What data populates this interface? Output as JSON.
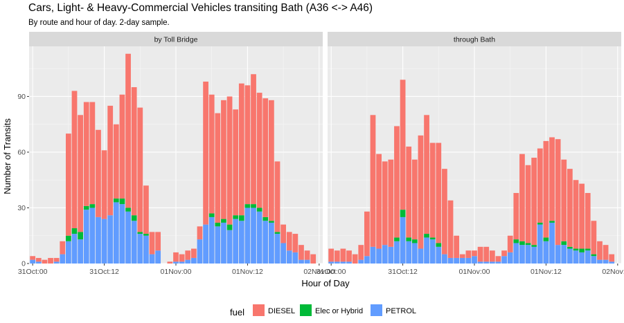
{
  "chart_data": {
    "type": "bar",
    "stacked": true,
    "title": "Cars, Light- & Heavy-Commercial Vehicles transiting Bath (A36 <-> A46)",
    "subtitle": "By route and hour of day. 2-day sample.",
    "xlabel": "Hour of Day",
    "ylabel": "Number of Transits",
    "x_ticks": [
      "31Oct:00",
      "31Oct:12",
      "01Nov:00",
      "01Nov:12",
      "02Nov:00"
    ],
    "y_ticks": [
      "0",
      "30",
      "60",
      "90"
    ],
    "ylim": [
      0,
      117
    ],
    "hours": 48,
    "legend_title": "fuel",
    "legend_position": "bottom",
    "colors": {
      "DIESEL": "#F8766D",
      "Elec or Hybrid": "#00BA38",
      "PETROL": "#619CFF"
    },
    "series_names": [
      "PETROL",
      "Elec or Hybrid",
      "DIESEL"
    ],
    "facets": [
      {
        "label": "by Toll Bridge",
        "series": [
          {
            "name": "PETROL",
            "values": [
              2,
              1,
              0,
              0,
              1,
              5,
              12,
              16,
              13,
              29,
              30,
              25,
              24,
              26,
              33,
              32,
              28,
              23,
              16,
              15,
              5,
              7,
              0,
              0,
              1,
              1,
              2,
              3,
              13,
              21,
              25,
              20,
              22,
              18,
              24,
              23,
              30,
              30,
              28,
              23,
              22,
              16,
              11,
              7,
              6,
              2,
              2,
              0
            ]
          },
          {
            "name": "Elec or Hybrid",
            "values": [
              0,
              0,
              0,
              0,
              0,
              0,
              3,
              3,
              4,
              2,
              2,
              0,
              0,
              0,
              2,
              3,
              2,
              3,
              1,
              1,
              0,
              0,
              0,
              0,
              0,
              0,
              0,
              0,
              0,
              0,
              2,
              2,
              2,
              3,
              2,
              3,
              2,
              2,
              2,
              2,
              1,
              1,
              0,
              0,
              0,
              0,
              0,
              0
            ]
          },
          {
            "name": "DIESEL",
            "values": [
              2,
              2,
              2,
              3,
              2,
              7,
              55,
              74,
              63,
              56,
              55,
              47,
              37,
              59,
              40,
              56,
              83,
              69,
              67,
              26,
              12,
              10,
              0,
              1,
              5,
              4,
              5,
              5,
              7,
              77,
              64,
              59,
              64,
              69,
              57,
              71,
              64,
              70,
              62,
              64,
              65,
              38,
              10,
              10,
              10,
              8,
              5,
              5
            ]
          }
        ]
      },
      {
        "label": "through Bath",
        "series": [
          {
            "name": "PETROL",
            "values": [
              1,
              1,
              1,
              1,
              0,
              2,
              4,
              9,
              8,
              10,
              9,
              12,
              25,
              12,
              11,
              8,
              14,
              13,
              9,
              5,
              3,
              3,
              3,
              3,
              4,
              1,
              1,
              1,
              1,
              4,
              6,
              11,
              10,
              10,
              9,
              21,
              12,
              22,
              10,
              10,
              8,
              7,
              6,
              7,
              4,
              2,
              2,
              1
            ]
          },
          {
            "name": "Elec or Hybrid",
            "values": [
              0,
              0,
              0,
              0,
              0,
              0,
              0,
              0,
              0,
              0,
              0,
              2,
              4,
              2,
              2,
              0,
              2,
              1,
              2,
              0,
              0,
              0,
              0,
              0,
              0,
              0,
              0,
              0,
              0,
              0,
              0,
              2,
              2,
              1,
              1,
              1,
              2,
              1,
              0,
              2,
              1,
              1,
              2,
              1,
              1,
              0,
              0,
              0
            ]
          },
          {
            "name": "DIESEL",
            "values": [
              7,
              6,
              7,
              6,
              5,
              8,
              24,
              71,
              51,
              45,
              47,
              60,
              70,
              49,
              43,
              61,
              64,
              51,
              54,
              46,
              31,
              12,
              2,
              4,
              3,
              8,
              8,
              6,
              3,
              3,
              9,
              25,
              47,
              42,
              47,
              40,
              52,
              45,
              57,
              44,
              42,
              37,
              35,
              30,
              18,
              10,
              8,
              4
            ]
          }
        ]
      }
    ]
  }
}
